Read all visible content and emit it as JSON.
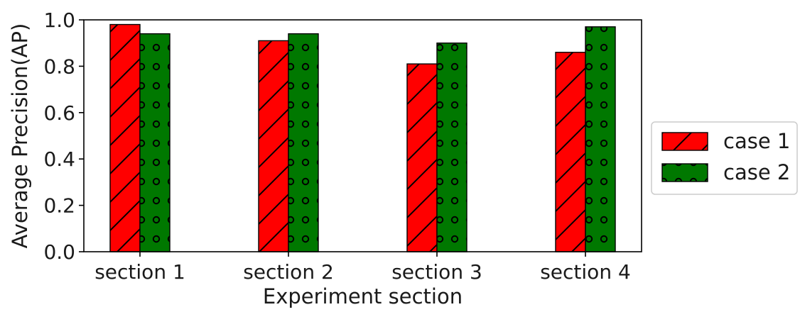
{
  "chart_data": {
    "type": "bar",
    "title": "",
    "xlabel": "Experiment section",
    "ylabel": "Average Precision(AP)",
    "categories": [
      "section 1",
      "section 2",
      "section 3",
      "section 4"
    ],
    "ylim": [
      0.0,
      1.0
    ],
    "yticks": [
      0.0,
      0.2,
      0.4,
      0.6,
      0.8,
      1.0
    ],
    "ytick_labels": [
      "0.0",
      "0.2",
      "0.4",
      "0.6",
      "0.8",
      "1.0"
    ],
    "grid": false,
    "legend_position": "right",
    "series": [
      {
        "name": "case 1",
        "color": "#ff0000",
        "hatch": "diagonal-lines",
        "values": [
          0.98,
          0.91,
          0.81,
          0.86
        ]
      },
      {
        "name": "case 2",
        "color": "#007800",
        "hatch": "circles",
        "values": [
          0.94,
          0.94,
          0.9,
          0.97
        ]
      }
    ]
  }
}
